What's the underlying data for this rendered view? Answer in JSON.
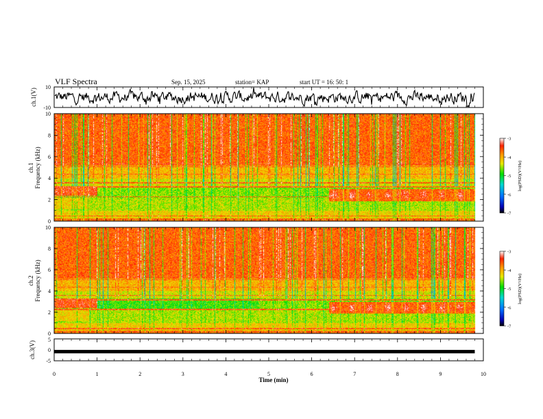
{
  "header": {
    "title": "VLF Spectra",
    "date": "Sep. 15, 2025",
    "station": "station= KAP",
    "start": "start  UT =   16: 50: 1"
  },
  "chart_data": [
    {
      "type": "line",
      "name": "ch1-waveform",
      "ylabel": "ch.1(V)",
      "ylim": [
        -10,
        10
      ],
      "yticks": [
        10,
        -10
      ],
      "xlim": [
        0,
        10
      ],
      "trace": "noisy signal roughly between -8 and 8 V over 0–9.8 min"
    },
    {
      "type": "heatmap",
      "name": "ch1-spectrogram",
      "title": "ch.1",
      "ylabel": "Frequency  (kHz)",
      "ylim": [
        0,
        10
      ],
      "yticks": [
        0,
        2,
        4,
        6,
        8,
        10
      ],
      "xlim": [
        0,
        10
      ],
      "data_x_end": 9.8,
      "colorbar": {
        "label": "log(PSD)(V²/Hz)",
        "range": [
          -7,
          -3
        ],
        "ticks": [
          -3,
          -4,
          -5,
          -6,
          -7
        ]
      }
    },
    {
      "type": "heatmap",
      "name": "ch2-spectrogram",
      "title": "ch.2",
      "ylabel": "Frequency  (kHz)",
      "ylim": [
        0,
        10
      ],
      "yticks": [
        0,
        2,
        4,
        6,
        8,
        10
      ],
      "xlim": [
        0,
        10
      ],
      "data_x_end": 9.8,
      "colorbar": {
        "label": "log(PSD)(V²/Hz)",
        "range": [
          -7,
          -3
        ],
        "ticks": [
          -3,
          -4,
          -5,
          -6,
          -7
        ]
      }
    },
    {
      "type": "line",
      "name": "ch3-waveform",
      "ylabel": "ch.3(V)",
      "ylim": [
        -5,
        5
      ],
      "yticks": [
        5,
        0,
        -5
      ],
      "xlim": [
        0,
        10
      ],
      "level": -0.8
    }
  ],
  "xaxis": {
    "label": "Time  (min)",
    "ticks": [
      0,
      1,
      2,
      3,
      4,
      5,
      6,
      7,
      8,
      9,
      10
    ]
  }
}
